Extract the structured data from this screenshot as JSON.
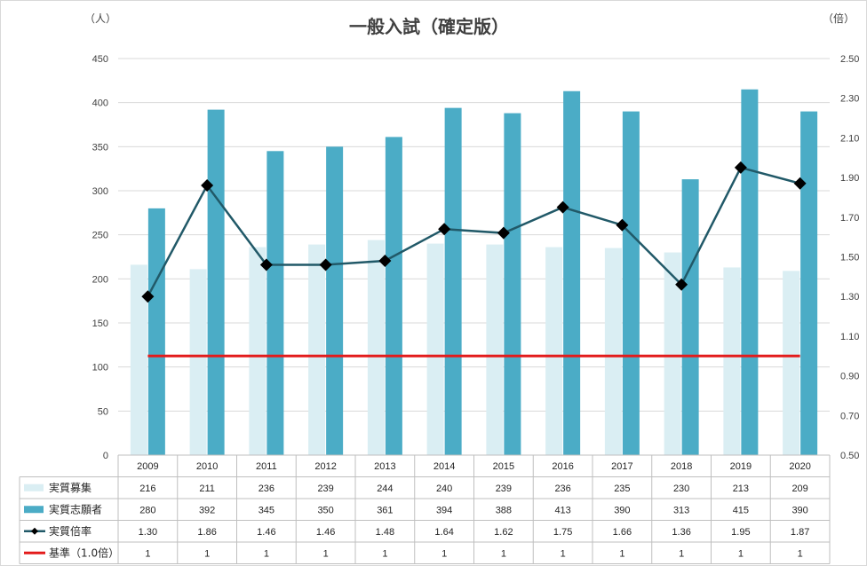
{
  "chart_data": {
    "type": "bar",
    "title": "一般入試（確定版）",
    "left_unit": "（人）",
    "right_unit": "（倍）",
    "categories": [
      "2009",
      "2010",
      "2011",
      "2012",
      "2013",
      "2014",
      "2015",
      "2016",
      "2017",
      "2018",
      "2019",
      "2020"
    ],
    "ylim": [
      0,
      450
    ],
    "y_ticks": [
      "0",
      "50",
      "100",
      "150",
      "200",
      "250",
      "300",
      "350",
      "400",
      "450"
    ],
    "y2lim": [
      0.5,
      2.5
    ],
    "y2_ticks": [
      "0.50",
      "0.70",
      "0.90",
      "1.10",
      "1.30",
      "1.50",
      "1.70",
      "1.90",
      "2.10",
      "2.30",
      "2.50"
    ],
    "grid": true,
    "series": [
      {
        "name": "実質募集",
        "type": "bar",
        "axis": "left",
        "color": "#daeef3",
        "values": [
          216,
          211,
          236,
          239,
          244,
          240,
          239,
          236,
          235,
          230,
          213,
          209
        ]
      },
      {
        "name": "実質志願者",
        "type": "bar",
        "axis": "left",
        "color": "#4bacc6",
        "values": [
          280,
          392,
          345,
          350,
          361,
          394,
          388,
          413,
          390,
          313,
          415,
          390
        ]
      },
      {
        "name": "実質倍率",
        "type": "line",
        "axis": "right",
        "color": "#215968",
        "values": [
          "1.30",
          "1.86",
          "1.46",
          "1.46",
          "1.48",
          "1.64",
          "1.62",
          "1.75",
          "1.66",
          "1.36",
          "1.95",
          "1.87"
        ]
      },
      {
        "name": "基準（1.0倍）",
        "type": "line",
        "axis": "right",
        "color": "#e31b1b",
        "values": [
          1,
          1,
          1,
          1,
          1,
          1,
          1,
          1,
          1,
          1,
          1,
          1
        ]
      }
    ]
  }
}
